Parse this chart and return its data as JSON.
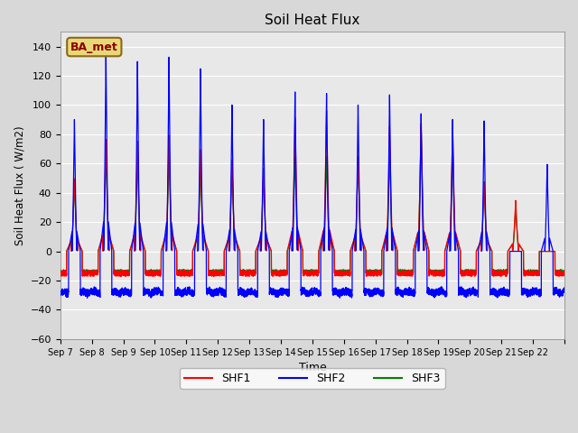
{
  "title": "Soil Heat Flux",
  "xlabel": "Time",
  "ylabel": "Soil Heat Flux ( W/m2)",
  "ylim": [
    -60,
    150
  ],
  "yticks": [
    -60,
    -40,
    -20,
    0,
    20,
    40,
    60,
    80,
    100,
    120,
    140
  ],
  "plot_bg_color": "#e8e8e8",
  "legend_label": "BA_met",
  "series": [
    "SHF1",
    "SHF2",
    "SHF3"
  ],
  "colors": [
    "red",
    "blue",
    "green"
  ],
  "n_days": 16,
  "start_day": 7,
  "shf1_peaks": [
    50,
    77,
    76,
    80,
    70,
    63,
    57,
    92,
    97,
    65,
    86,
    88,
    85,
    47,
    35,
    0
  ],
  "shf2_peaks": [
    91,
    136,
    131,
    134,
    126,
    101,
    91,
    110,
    109,
    101,
    108,
    95,
    91,
    90,
    0,
    60
  ],
  "shf3_peaks": [
    48,
    68,
    65,
    68,
    60,
    60,
    55,
    65,
    65,
    65,
    67,
    88,
    75,
    48,
    30,
    0
  ],
  "night_base_shf1": -15,
  "night_base_shf2": -28,
  "night_base_shf3": -14
}
